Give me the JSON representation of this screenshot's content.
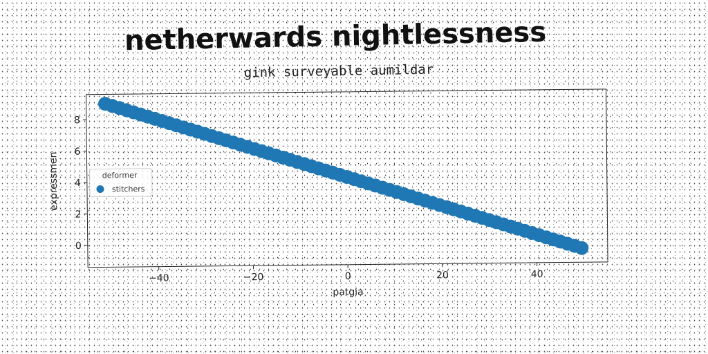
{
  "chart_data": {
    "type": "scatter",
    "title": "netherwards nightlessness",
    "subtitle": "gink surveyable aumildar",
    "xlabel": "patgia",
    "ylabel": "expressmen",
    "xlim": [
      -55,
      55
    ],
    "ylim": [
      -1.4,
      9.6
    ],
    "xticks": [
      -40,
      -20,
      0,
      20,
      40
    ],
    "xtick_labels": [
      "−40",
      "−20",
      "0",
      "20",
      "40"
    ],
    "yticks": [
      0,
      2,
      4,
      6,
      8
    ],
    "ytick_labels": [
      "0",
      "2",
      "4",
      "6",
      "8"
    ],
    "grid": false,
    "legend": {
      "title": "deformer",
      "position": "center-left",
      "entries": [
        {
          "label": "stitchers",
          "color": "#1f77b4"
        }
      ]
    },
    "series": [
      {
        "name": "stitchers",
        "color": "#1f77b4",
        "x_start": -51,
        "x_end": 50,
        "x_step": 1.5,
        "y_start": 9.0,
        "y_end": -0.5
      }
    ]
  }
}
